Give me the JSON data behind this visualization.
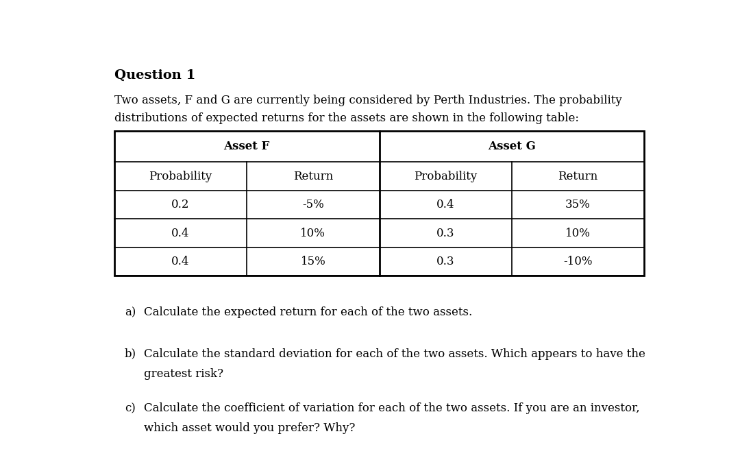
{
  "title": "Question 1",
  "intro_line1": "Two assets, F and G are currently being considered by Perth Industries. The probability",
  "intro_line2": "distributions of expected returns for the assets are shown in the following table:",
  "asset_f_header": "Asset F",
  "asset_g_header": "Asset G",
  "col_headers": [
    "Probability",
    "Return",
    "Probability",
    "Return"
  ],
  "asset_f_data": [
    [
      "0.2",
      "-5%"
    ],
    [
      "0.4",
      "10%"
    ],
    [
      "0.4",
      "15%"
    ]
  ],
  "asset_g_data": [
    [
      "0.4",
      "35%"
    ],
    [
      "0.3",
      "10%"
    ],
    [
      "0.3",
      "-10%"
    ]
  ],
  "q_a_label": "a)",
  "q_a_text": "Calculate the expected return for each of the two assets.",
  "q_b_label": "b)",
  "q_b_line1": "Calculate the standard deviation for each of the two assets. Which appears to have the",
  "q_b_line2": "greatest risk?",
  "q_c_label": "c)",
  "q_c_line1": "Calculate the coefficient of variation for each of the two assets. If you are an investor,",
  "q_c_line2": "which asset would you prefer? Why?",
  "bg_color": "#ffffff",
  "text_color": "#000000",
  "font_size_title": 14,
  "font_size_body": 12,
  "font_size_table": 12
}
